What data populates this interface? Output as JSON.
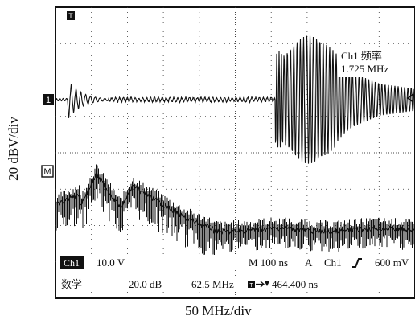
{
  "axis": {
    "y_label": "20 dBV/div",
    "x_label": "50 MHz/div"
  },
  "markers": {
    "trigger_top": "T",
    "ch1_level": "1",
    "math_level": "M"
  },
  "measurement": {
    "name": "Ch1 频率",
    "value": "1.725 MHz"
  },
  "status": {
    "ch1_badge": "Ch1",
    "ch1_scale": "10.0 V",
    "timebase": "M 100 ns",
    "trigger_mode": "A",
    "trigger_source": "Ch1",
    "trigger_slope": "∫",
    "trigger_level": "600 mV"
  },
  "math": {
    "label": "数学",
    "scale": "20.0 dB",
    "span": "62.5 MHz",
    "position_icon": "trigger-position-icon",
    "position_value": "464.400 ns"
  },
  "colors": {
    "trace": "#111111",
    "grid": "#222222",
    "badge_bg": "#111111",
    "badge_fg": "#ffffff"
  }
}
